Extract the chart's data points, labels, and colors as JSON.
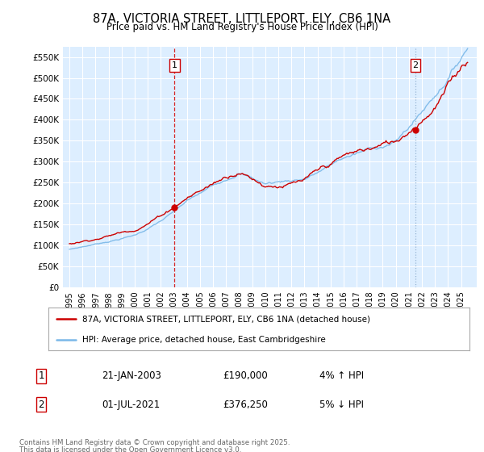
{
  "title": "87A, VICTORIA STREET, LITTLEPORT, ELY, CB6 1NA",
  "subtitle": "Price paid vs. HM Land Registry's House Price Index (HPI)",
  "ylim": [
    0,
    575000
  ],
  "yticks": [
    0,
    50000,
    100000,
    150000,
    200000,
    250000,
    300000,
    350000,
    400000,
    450000,
    500000,
    550000
  ],
  "ytick_labels": [
    "£0",
    "£50K",
    "£100K",
    "£150K",
    "£200K",
    "£250K",
    "£300K",
    "£350K",
    "£400K",
    "£450K",
    "£500K",
    "£550K"
  ],
  "hpi_color": "#7ab8e8",
  "price_color": "#cc0000",
  "vline1_color": "#cc0000",
  "vline1_style": "--",
  "vline2_color": "#88aacc",
  "vline2_style": ":",
  "plot_bg_color": "#ddeeff",
  "grid_color": "#ffffff",
  "transaction1_x": 2003.05,
  "transaction1_label": "1",
  "transaction1_price": 190000,
  "transaction2_x": 2021.5,
  "transaction2_label": "2",
  "transaction2_price": 376250,
  "legend_line1": "87A, VICTORIA STREET, LITTLEPORT, ELY, CB6 1NA (detached house)",
  "legend_line2": "HPI: Average price, detached house, East Cambridgeshire",
  "footer1": "Contains HM Land Registry data © Crown copyright and database right 2025.",
  "footer2": "This data is licensed under the Open Government Licence v3.0.",
  "background_color": "#ffffff",
  "note1_label": "1",
  "note1_date": "21-JAN-2003",
  "note1_price": "£190,000",
  "note1_hpi": "4% ↑ HPI",
  "note2_label": "2",
  "note2_date": "01-JUL-2021",
  "note2_price": "£376,250",
  "note2_hpi": "5% ↓ HPI",
  "xlim_left": 1994.5,
  "xlim_right": 2026.2
}
